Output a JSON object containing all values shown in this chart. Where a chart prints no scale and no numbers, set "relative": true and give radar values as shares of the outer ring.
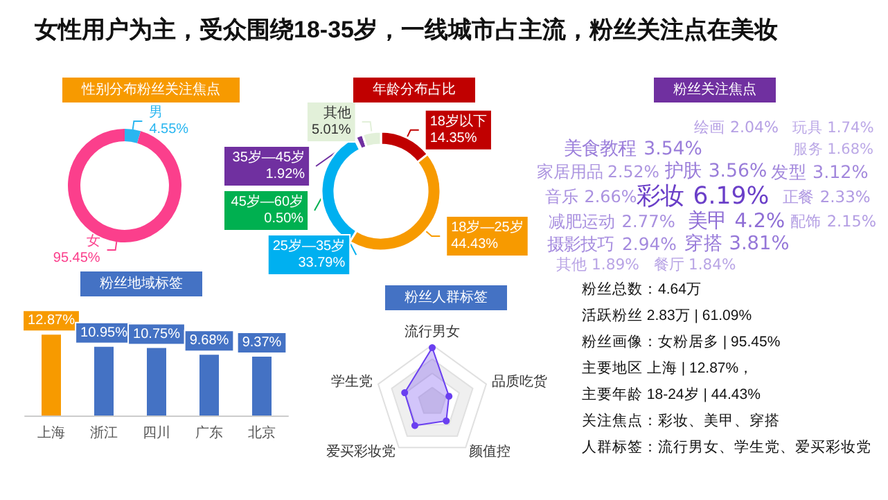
{
  "chart_data": [
    {
      "type": "other",
      "title": "女性用户为主，受众围绕18-35岁，一线城市占主流，粉丝关注点在美妆"
    },
    {
      "type": "donut",
      "title": "性别分布粉丝关注焦点",
      "categories": [
        "男",
        "女"
      ],
      "values": [
        4.55,
        95.45
      ],
      "value_labels": [
        "4.55%",
        "95.45%"
      ],
      "colors": [
        "#29b6f0",
        "#fb3f8c"
      ]
    },
    {
      "type": "donut",
      "title": "年龄分布占比",
      "categories": [
        "18岁以下",
        "18岁—25岁",
        "25岁—35岁",
        "45岁—60岁",
        "35岁—45岁",
        "其他"
      ],
      "values": [
        14.35,
        44.43,
        33.79,
        0.5,
        1.92,
        5.01
      ],
      "value_labels": [
        "14.35%",
        "44.43%",
        "33.79%",
        "0.50%",
        "1.92%",
        "5.01%"
      ],
      "colors": [
        "#c00000",
        "#f79a00",
        "#00b0f0",
        "#00b050",
        "#7030a0",
        "#e2f0d9"
      ]
    },
    {
      "type": "other",
      "title": "粉丝关注焦点",
      "color": "#6a3fc8",
      "categories": [
        "绘画",
        "玩具",
        "美食教程",
        "服务",
        "家居用品",
        "护肤",
        "发型",
        "音乐",
        "彩妆",
        "正餐",
        "减肥运动",
        "美甲",
        "配饰",
        "摄影技巧",
        "穿搭",
        "其他",
        "餐厅"
      ],
      "values": [
        2.04,
        1.74,
        3.54,
        1.68,
        2.52,
        3.56,
        3.12,
        2.66,
        6.19,
        2.33,
        2.77,
        4.2,
        2.15,
        2.94,
        3.81,
        1.89,
        1.84
      ],
      "value_labels": [
        "2.04%",
        "1.74%",
        "3.54%",
        "1.68%",
        "2.52%",
        "3.56%",
        "3.12%",
        "2.66%",
        "6.19%",
        "2.33%",
        "2.77%",
        "4.2%",
        "2.15%",
        "2.94%",
        "3.81%",
        "1.89%",
        "1.84%"
      ]
    },
    {
      "type": "bar",
      "title": "粉丝地域标签",
      "categories": [
        "上海",
        "浙江",
        "四川",
        "广东",
        "北京"
      ],
      "values": [
        12.87,
        10.95,
        10.75,
        9.68,
        9.37
      ],
      "value_labels": [
        "12.87%",
        "10.95%",
        "10.75%",
        "9.68%",
        "9.37%"
      ],
      "colors": [
        "#f79a00",
        "#4472c4",
        "#4472c4",
        "#4472c4",
        "#4472c4"
      ]
    },
    {
      "type": "radar",
      "title": "粉丝人群标签",
      "relative": true,
      "categories": [
        "流行男女",
        "品质吃货",
        "颜值控",
        "爱买彩妆党",
        "学生党"
      ],
      "series": [
        {
          "color": "#6a3ff0",
          "values": [
            0.95,
            0.31,
            0.42,
            0.52,
            0.51
          ]
        }
      ],
      "marker": "circle"
    },
    {
      "type": "other",
      "annotations": [
        "粉丝总数：4.64万",
        "活跃粉丝 2.83万 | 61.09%",
        "粉丝画像：女粉居多 | 95.45%",
        "主要地区 上海 | 12.87%，",
        "主要年龄 18-24岁 | 44.43%",
        "关注焦点：彩妆、美甲、穿搭",
        "人群标签：流行男女、学生党、爱买彩妆党"
      ]
    }
  ]
}
